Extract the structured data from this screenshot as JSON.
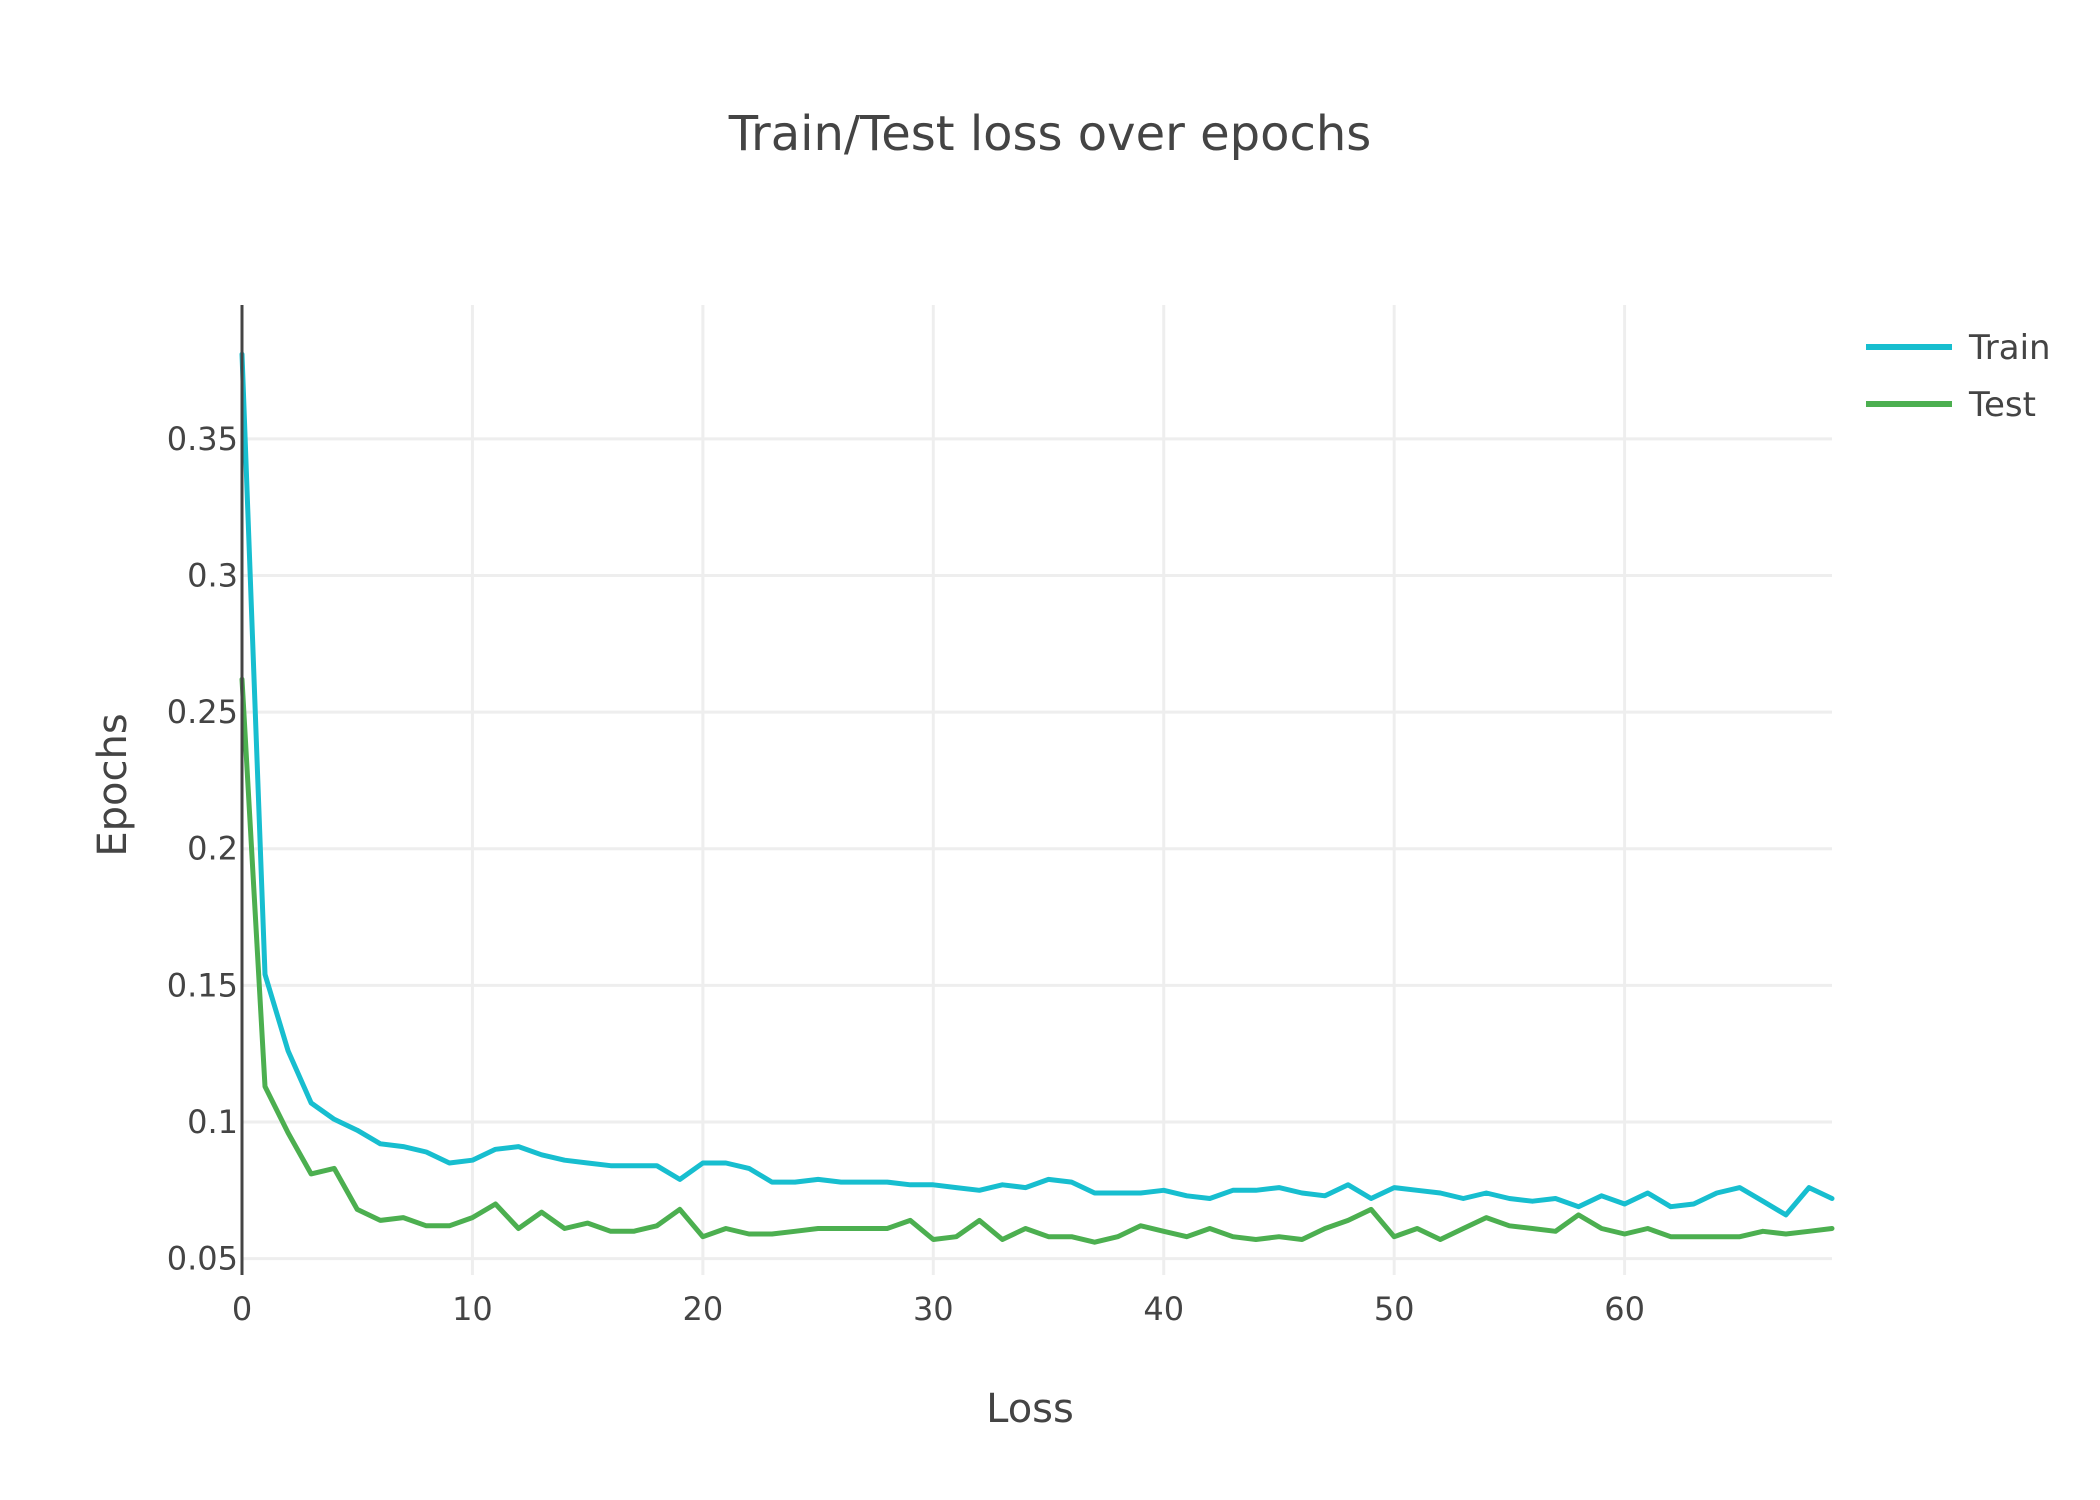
{
  "chart_data": {
    "type": "line",
    "title": "Train/Test loss over epochs",
    "xlabel": "Loss",
    "ylabel": "Epochs",
    "xlim": [
      0,
      69
    ],
    "ylim": [
      0.044,
      0.399
    ],
    "xticks": [
      0,
      10,
      20,
      30,
      40,
      50,
      60
    ],
    "yticks": [
      0.05,
      0.1,
      0.15,
      0.2,
      0.25,
      0.3,
      0.35
    ],
    "ytick_labels": [
      "0.05",
      "0.1",
      "0.15",
      "0.2",
      "0.25",
      "0.3",
      "0.35"
    ],
    "grid": true,
    "legend_position": "top-right",
    "series": [
      {
        "name": "Train",
        "color": "#17becf",
        "x": [
          0,
          1,
          2,
          3,
          4,
          5,
          6,
          7,
          8,
          9,
          10,
          11,
          12,
          13,
          14,
          15,
          16,
          17,
          18,
          19,
          20,
          21,
          22,
          23,
          24,
          25,
          26,
          27,
          28,
          29,
          30,
          31,
          32,
          33,
          34,
          35,
          36,
          37,
          38,
          39,
          40,
          41,
          42,
          43,
          44,
          45,
          46,
          47,
          48,
          49,
          50,
          51,
          52,
          53,
          54,
          55,
          56,
          57,
          58,
          59,
          60,
          61,
          62,
          63,
          64,
          65,
          66,
          67,
          68,
          69
        ],
        "y": [
          0.381,
          0.154,
          0.126,
          0.107,
          0.101,
          0.097,
          0.092,
          0.091,
          0.089,
          0.085,
          0.086,
          0.09,
          0.091,
          0.088,
          0.086,
          0.085,
          0.084,
          0.084,
          0.084,
          0.079,
          0.085,
          0.085,
          0.083,
          0.078,
          0.078,
          0.079,
          0.078,
          0.078,
          0.078,
          0.077,
          0.077,
          0.076,
          0.075,
          0.077,
          0.076,
          0.079,
          0.078,
          0.074,
          0.074,
          0.074,
          0.075,
          0.073,
          0.072,
          0.075,
          0.075,
          0.076,
          0.074,
          0.073,
          0.077,
          0.072,
          0.076,
          0.075,
          0.074,
          0.072,
          0.074,
          0.072,
          0.071,
          0.072,
          0.069,
          0.073,
          0.07,
          0.074,
          0.069,
          0.07,
          0.074,
          0.076,
          0.071,
          0.066,
          0.076,
          0.072
        ]
      },
      {
        "name": "Test",
        "color": "#4caf50",
        "x": [
          0,
          1,
          2,
          3,
          4,
          5,
          6,
          7,
          8,
          9,
          10,
          11,
          12,
          13,
          14,
          15,
          16,
          17,
          18,
          19,
          20,
          21,
          22,
          23,
          24,
          25,
          26,
          27,
          28,
          29,
          30,
          31,
          32,
          33,
          34,
          35,
          36,
          37,
          38,
          39,
          40,
          41,
          42,
          43,
          44,
          45,
          46,
          47,
          48,
          49,
          50,
          51,
          52,
          53,
          54,
          55,
          56,
          57,
          58,
          59,
          60,
          61,
          62,
          63,
          64,
          65,
          66,
          67,
          68,
          69
        ],
        "y": [
          0.262,
          0.113,
          0.096,
          0.081,
          0.083,
          0.068,
          0.064,
          0.065,
          0.062,
          0.062,
          0.065,
          0.07,
          0.061,
          0.067,
          0.061,
          0.063,
          0.06,
          0.06,
          0.062,
          0.068,
          0.058,
          0.061,
          0.059,
          0.059,
          0.06,
          0.061,
          0.061,
          0.061,
          0.061,
          0.064,
          0.057,
          0.058,
          0.064,
          0.057,
          0.061,
          0.058,
          0.058,
          0.056,
          0.058,
          0.062,
          0.06,
          0.058,
          0.061,
          0.058,
          0.057,
          0.058,
          0.057,
          0.061,
          0.064,
          0.068,
          0.058,
          0.061,
          0.057,
          0.061,
          0.065,
          0.062,
          0.061,
          0.06,
          0.066,
          0.061,
          0.059,
          0.061,
          0.058,
          0.058,
          0.058,
          0.058,
          0.06,
          0.059,
          0.06,
          0.061
        ]
      }
    ]
  }
}
